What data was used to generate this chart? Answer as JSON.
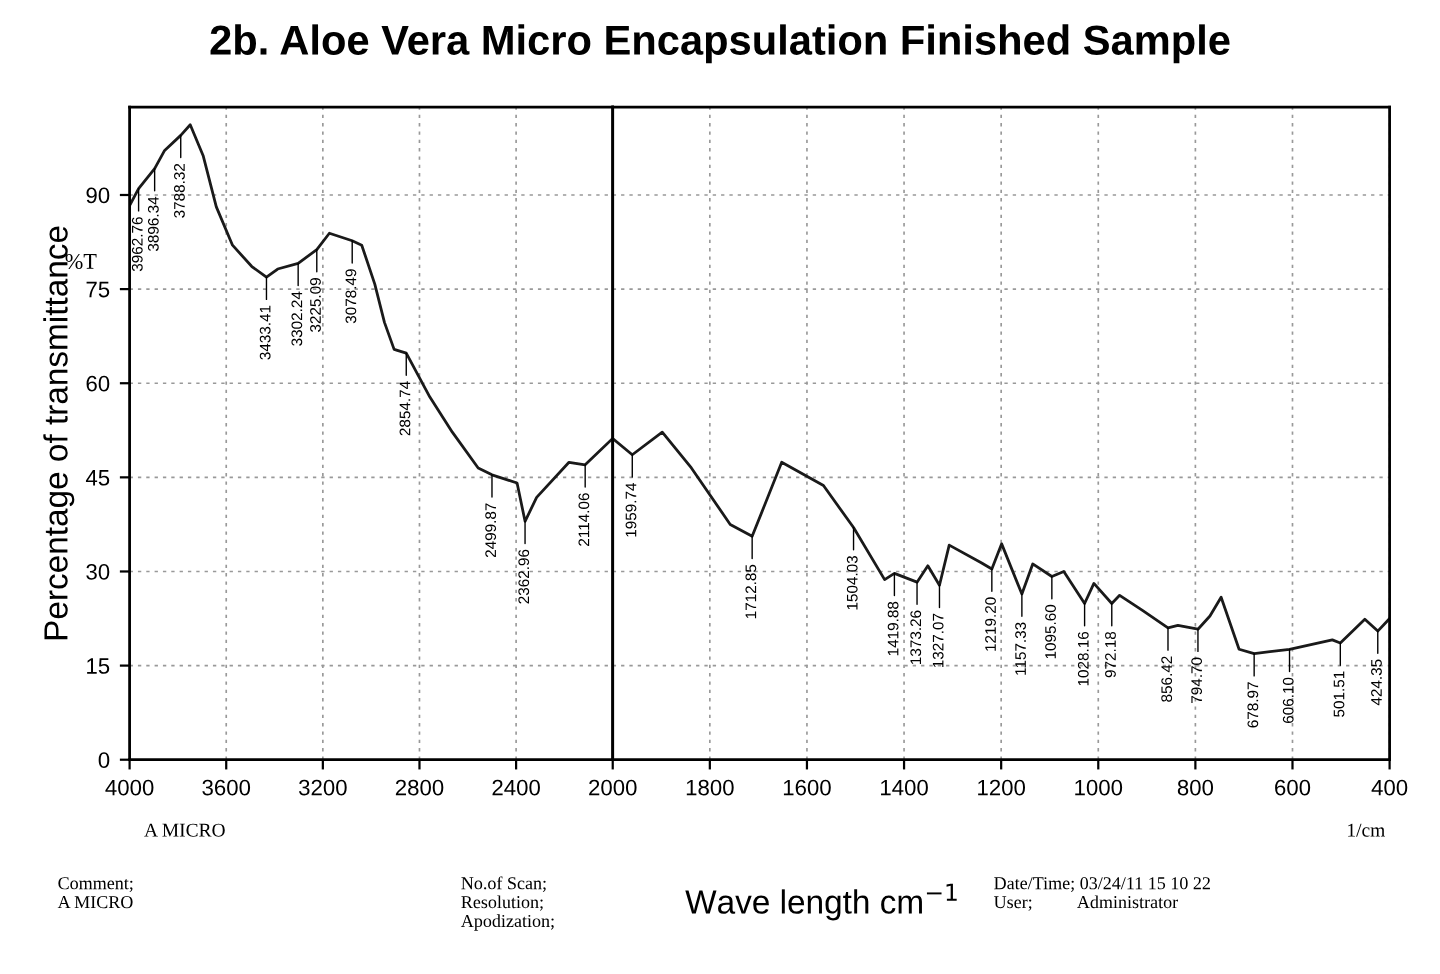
{
  "chart_data": [
    {
      "type": "line",
      "title": "2b. Aloe Vera Micro Encapsulation Finished Sample",
      "ylabel": "Percentage of transmittance",
      "color": "#1a1a1a",
      "x": [
        4000,
        3962.76,
        3896.34,
        3855,
        3788.32,
        3749,
        3695,
        3641,
        3574,
        3494,
        3433.41,
        3387,
        3302.24,
        3225.09,
        3173,
        3078.49,
        3039,
        2985,
        2945,
        2905,
        2854.74,
        2757,
        2664,
        2557,
        2499.87,
        2396,
        2362.96,
        2315,
        2181,
        2114.06,
        2000
      ],
      "values": [
        88.3,
        91.0,
        94.2,
        97.1,
        99.5,
        101.2,
        96.2,
        88.1,
        82.0,
        78.6,
        76.9,
        78.2,
        79.1,
        81.3,
        83.9,
        82.7,
        82.0,
        75.8,
        69.7,
        65.4,
        64.8,
        57.8,
        52.2,
        46.5,
        45.4,
        44.1,
        38.0,
        41.8,
        47.4,
        47.0,
        51.2
      ],
      "xlim": [
        4000,
        2000
      ],
      "xticks": [
        4000,
        3600,
        3200,
        2800,
        2400
      ],
      "ylim": [
        0,
        104
      ],
      "yticks": [
        0,
        15,
        30,
        45,
        60,
        75,
        90
      ],
      "grid": true,
      "line_style": "solid",
      "annotations": [
        "%T",
        "A MICRO",
        "Comment;\nA MICRO",
        "No.of Scan;\nResolution;\nApodization;",
        {
          "text": "3962.76",
          "x": 3962.76,
          "y": 91.0
        },
        {
          "text": "3896.34",
          "x": 3896.34,
          "y": 94.2
        },
        {
          "text": "3788.32",
          "x": 3788.32,
          "y": 99.5
        },
        {
          "text": "3433.41",
          "x": 3433.41,
          "y": 76.9
        },
        {
          "text": "3302.24",
          "x": 3302.24,
          "y": 79.1
        },
        {
          "text": "3225.09",
          "x": 3225.09,
          "y": 81.3
        },
        {
          "text": "3078.49",
          "x": 3078.49,
          "y": 82.7
        },
        {
          "text": "2854.74",
          "x": 2854.74,
          "y": 64.8
        },
        {
          "text": "2499.87",
          "x": 2499.87,
          "y": 45.4
        },
        {
          "text": "2362.96",
          "x": 2362.96,
          "y": 38.0
        },
        {
          "text": "2114.06",
          "x": 2114.06,
          "y": 47.0
        }
      ]
    },
    {
      "type": "line",
      "xlabel": "Wave length cm$^{−1}$",
      "color": "#1a1a1a",
      "x": [
        2000,
        1959.74,
        1898,
        1838,
        1758,
        1712.85,
        1652,
        1566,
        1504.03,
        1440,
        1419.88,
        1373.26,
        1351,
        1327.07,
        1307,
        1241,
        1219.2,
        1199,
        1157.33,
        1135,
        1095.6,
        1071,
        1028.16,
        1009,
        972.18,
        956,
        909,
        856.42,
        836,
        794.7,
        770,
        747,
        710,
        678.97,
        606.1,
        518,
        501.51,
        451,
        424.35,
        400
      ],
      "values": [
        51.2,
        48.6,
        52.2,
        46.5,
        37.5,
        35.6,
        47.4,
        43.7,
        37.0,
        28.7,
        29.7,
        28.3,
        30.9,
        27.8,
        34.2,
        31.4,
        30.4,
        34.4,
        26.4,
        31.2,
        29.2,
        30.0,
        24.9,
        28.1,
        24.9,
        26.2,
        23.8,
        21.0,
        21.4,
        20.8,
        22.9,
        25.9,
        17.6,
        16.9,
        17.6,
        19.1,
        18.6,
        22.4,
        20.5,
        22.5
      ],
      "xlim": [
        2000,
        400
      ],
      "xticks": [
        2000,
        1800,
        1600,
        1400,
        1200,
        1000,
        800,
        600,
        400
      ],
      "ylim": [
        0,
        104
      ],
      "yticks": [
        0,
        15,
        30,
        45,
        60,
        75,
        90
      ],
      "tick_labels": "x",
      "grid": true,
      "line_style": "solid",
      "annotations": [
        "1/cm",
        "Date/Time; 03/24/11 15 10 22\nUser;          Administrator",
        {
          "text": "1959.74",
          "x": 1959.74,
          "y": 48.6
        },
        {
          "text": "1712.85",
          "x": 1712.85,
          "y": 35.6
        },
        {
          "text": "1504.03",
          "x": 1504.03,
          "y": 37.0
        },
        {
          "text": "1419.88",
          "x": 1419.88,
          "y": 29.7
        },
        {
          "text": "1373.26",
          "x": 1373.26,
          "y": 28.3
        },
        {
          "text": "1327.07",
          "x": 1327.07,
          "y": 27.8
        },
        {
          "text": "1219.20",
          "x": 1219.2,
          "y": 30.4
        },
        {
          "text": "1157.33",
          "x": 1157.33,
          "y": 26.4
        },
        {
          "text": "1095.60",
          "x": 1095.6,
          "y": 29.2
        },
        {
          "text": "1028.16",
          "x": 1028.16,
          "y": 24.9
        },
        {
          "text": "972.18",
          "x": 972.18,
          "y": 24.9
        },
        {
          "text": "856.42",
          "x": 856.42,
          "y": 21.0
        },
        {
          "text": "794.70",
          "x": 794.7,
          "y": 20.8
        },
        {
          "text": "678.97",
          "x": 678.97,
          "y": 16.9
        },
        {
          "text": "606.10",
          "x": 606.1,
          "y": 17.6
        },
        {
          "text": "501.51",
          "x": 501.51,
          "y": 18.6
        },
        {
          "text": "424.35",
          "x": 424.35,
          "y": 20.5
        }
      ]
    }
  ]
}
